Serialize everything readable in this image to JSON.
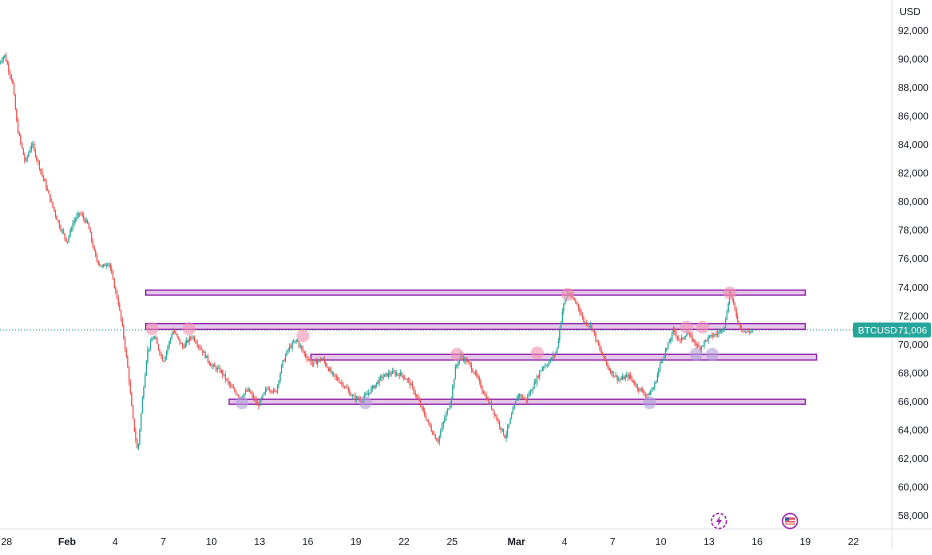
{
  "app": {
    "currency_label": "USD"
  },
  "price_badge": {
    "symbol": "BTCUSD",
    "value": "71,006"
  },
  "colors": {
    "up": "#26a69a",
    "down": "#ef5350",
    "zone_fill": "#e1bee7",
    "zone_stroke": "#8e24aa",
    "resistance_marker": "#f48fb1",
    "support_marker": "#b39ddb",
    "badge_bg": "#26a69a",
    "current_line": "#26a69a",
    "axis_text": "#131722",
    "axis_border": "#e0e3eb"
  },
  "chart_data": {
    "type": "candlestick",
    "title": "",
    "xlabel": "",
    "ylabel": "USD",
    "ylim": [
      57000,
      93000
    ],
    "y_ticks": [
      58000,
      60000,
      62000,
      64000,
      66000,
      68000,
      70000,
      72000,
      74000,
      76000,
      78000,
      80000,
      82000,
      84000,
      86000,
      88000,
      90000,
      92000
    ],
    "y_tick_labels": [
      "58,000",
      "60,000",
      "62,000",
      "64,000",
      "66,000",
      "68,000",
      "70,000",
      "72,000",
      "74,000",
      "76,000",
      "78,000",
      "80,000",
      "82,000",
      "84,000",
      "86,000",
      "88,000",
      "90,000",
      "92,000"
    ],
    "x_tick_labels": [
      "28",
      "Feb",
      "4",
      "7",
      "10",
      "13",
      "16",
      "19",
      "22",
      "25",
      "Mar",
      "4",
      "7",
      "10",
      "13",
      "16",
      "19",
      "22"
    ],
    "x_tick_days": [
      -4,
      0,
      3,
      6,
      9,
      12,
      15,
      18,
      21,
      24,
      28,
      31,
      34,
      37,
      40,
      43,
      46,
      49
    ],
    "grid": false,
    "current_price": 71006,
    "price_path": [
      [
        -4.3,
        89600
      ],
      [
        -3.9,
        90300
      ],
      [
        -3.4,
        88400
      ],
      [
        -3.1,
        85200
      ],
      [
        -2.6,
        82700
      ],
      [
        -2.2,
        84100
      ],
      [
        -1.7,
        82400
      ],
      [
        -1.0,
        80000
      ],
      [
        -0.5,
        78400
      ],
      [
        0.0,
        77200
      ],
      [
        0.4,
        78600
      ],
      [
        0.8,
        79200
      ],
      [
        1.3,
        78400
      ],
      [
        1.8,
        76000
      ],
      [
        2.2,
        75400
      ],
      [
        2.6,
        75800
      ],
      [
        2.9,
        74300
      ],
      [
        3.2,
        72900
      ],
      [
        3.5,
        70800
      ],
      [
        3.8,
        68200
      ],
      [
        4.1,
        64800
      ],
      [
        4.4,
        62400
      ],
      [
        4.7,
        66200
      ],
      [
        5.0,
        69500
      ],
      [
        5.4,
        70600
      ],
      [
        6.0,
        68800
      ],
      [
        6.6,
        71000
      ],
      [
        7.2,
        69800
      ],
      [
        7.8,
        70600
      ],
      [
        8.4,
        69600
      ],
      [
        9.0,
        68500
      ],
      [
        9.6,
        68100
      ],
      [
        10.2,
        67000
      ],
      [
        10.8,
        66300
      ],
      [
        11.3,
        66800
      ],
      [
        11.9,
        65700
      ],
      [
        12.5,
        67000
      ],
      [
        13.0,
        66600
      ],
      [
        13.4,
        68600
      ],
      [
        13.8,
        69700
      ],
      [
        14.3,
        70300
      ],
      [
        14.8,
        69300
      ],
      [
        15.3,
        68600
      ],
      [
        15.9,
        69000
      ],
      [
        16.5,
        67900
      ],
      [
        17.2,
        67200
      ],
      [
        17.8,
        66300
      ],
      [
        18.4,
        66100
      ],
      [
        19.0,
        66900
      ],
      [
        19.6,
        67700
      ],
      [
        20.2,
        68000
      ],
      [
        20.8,
        67900
      ],
      [
        21.3,
        67400
      ],
      [
        21.8,
        66300
      ],
      [
        22.3,
        65000
      ],
      [
        22.7,
        64000
      ],
      [
        23.1,
        63200
      ],
      [
        23.5,
        64700
      ],
      [
        23.9,
        66000
      ],
      [
        24.2,
        68300
      ],
      [
        24.5,
        69200
      ],
      [
        25.0,
        68700
      ],
      [
        25.5,
        67800
      ],
      [
        26.0,
        66500
      ],
      [
        26.5,
        65500
      ],
      [
        27.0,
        64200
      ],
      [
        27.3,
        63500
      ],
      [
        27.7,
        65000
      ],
      [
        28.1,
        66500
      ],
      [
        28.6,
        66100
      ],
      [
        29.1,
        67200
      ],
      [
        29.6,
        68400
      ],
      [
        30.0,
        68700
      ],
      [
        30.5,
        69500
      ],
      [
        30.9,
        72600
      ],
      [
        31.2,
        73600
      ],
      [
        31.5,
        73200
      ],
      [
        31.8,
        72800
      ],
      [
        32.2,
        71600
      ],
      [
        32.7,
        71200
      ],
      [
        33.2,
        69600
      ],
      [
        33.8,
        68200
      ],
      [
        34.4,
        67500
      ],
      [
        35.0,
        67800
      ],
      [
        35.6,
        66900
      ],
      [
        36.2,
        66400
      ],
      [
        36.6,
        67100
      ],
      [
        37.0,
        68800
      ],
      [
        37.4,
        69800
      ],
      [
        37.8,
        71000
      ],
      [
        38.2,
        70200
      ],
      [
        38.6,
        70800
      ],
      [
        39.0,
        70300
      ],
      [
        39.4,
        69700
      ],
      [
        39.8,
        70300
      ],
      [
        40.2,
        70600
      ],
      [
        40.6,
        70800
      ],
      [
        41.0,
        71400
      ],
      [
        41.3,
        73800
      ],
      [
        41.6,
        72400
      ],
      [
        41.9,
        71300
      ],
      [
        42.3,
        70800
      ],
      [
        42.7,
        71006
      ]
    ],
    "zones": [
      {
        "name": "top-resistance",
        "low": 73450,
        "high": 73800,
        "start_day": 4.9,
        "end_day": 46.0
      },
      {
        "name": "upper-resistance",
        "low": 71050,
        "high": 71450,
        "start_day": 4.9,
        "end_day": 46.0
      },
      {
        "name": "mid-support",
        "low": 68900,
        "high": 69300,
        "start_day": 15.2,
        "end_day": 46.7
      },
      {
        "name": "lower-support",
        "low": 65850,
        "high": 66150,
        "start_day": 10.1,
        "end_day": 46.0
      }
    ],
    "resistance_touches": [
      [
        5.3,
        71100
      ],
      [
        7.6,
        71100
      ],
      [
        14.7,
        70600
      ],
      [
        24.3,
        69300
      ],
      [
        29.3,
        69400
      ],
      [
        31.2,
        73500
      ],
      [
        38.6,
        71200
      ],
      [
        39.6,
        71200
      ],
      [
        41.3,
        73600
      ]
    ],
    "support_touches": [
      [
        10.9,
        65900
      ],
      [
        18.6,
        65900
      ],
      [
        36.3,
        65900
      ],
      [
        39.2,
        69300
      ],
      [
        40.2,
        69300
      ]
    ]
  }
}
